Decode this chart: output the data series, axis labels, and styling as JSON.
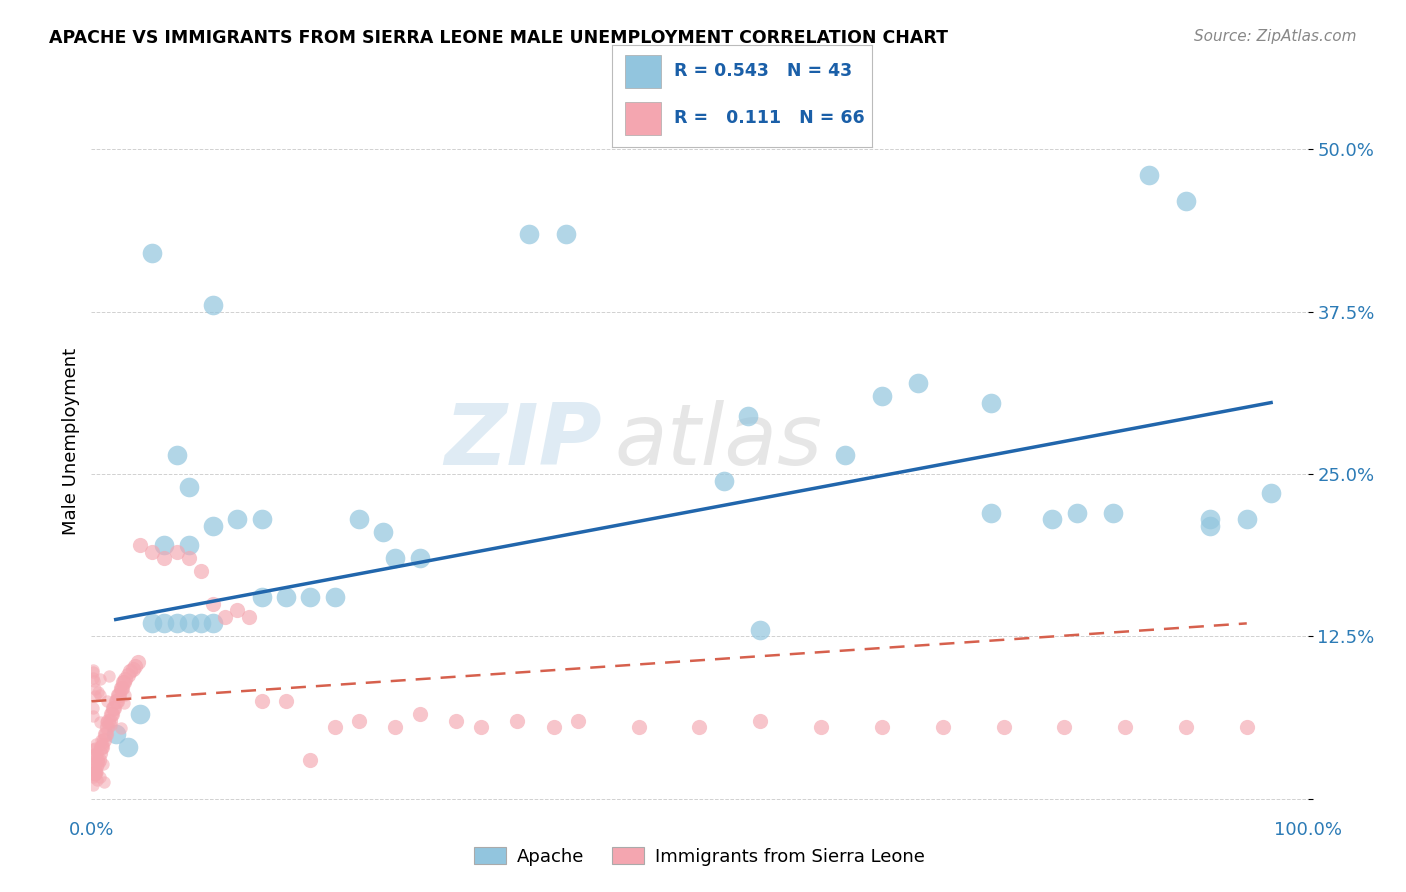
{
  "title": "APACHE VS IMMIGRANTS FROM SIERRA LEONE MALE UNEMPLOYMENT CORRELATION CHART",
  "source": "Source: ZipAtlas.com",
  "ylabel": "Male Unemployment",
  "xlim": [
    0.0,
    1.0
  ],
  "ylim": [
    -0.01,
    0.56
  ],
  "xtick_vals": [
    0.0,
    0.25,
    0.5,
    0.75,
    1.0
  ],
  "xtick_labels": [
    "0.0%",
    "",
    "",
    "",
    "100.0%"
  ],
  "ytick_vals": [
    0.0,
    0.125,
    0.25,
    0.375,
    0.5
  ],
  "ytick_labels": [
    "",
    "12.5%",
    "25.0%",
    "37.5%",
    "50.0%"
  ],
  "legend_r_blue": "0.543",
  "legend_n_blue": "43",
  "legend_r_pink": "0.111",
  "legend_n_pink": "66",
  "blue_color": "#92c5de",
  "pink_color": "#f4a6b0",
  "blue_line_color": "#2166ac",
  "pink_line_color": "#d6604d",
  "watermark_zip": "ZIP",
  "watermark_atlas": "atlas",
  "apache_x": [
    0.05,
    0.36,
    0.39,
    0.1,
    0.07,
    0.08,
    0.12,
    0.14,
    0.06,
    0.08,
    0.1,
    0.22,
    0.24,
    0.52,
    0.54,
    0.65,
    0.68,
    0.74,
    0.74,
    0.79,
    0.81,
    0.84,
    0.87,
    0.9,
    0.92,
    0.92,
    0.95,
    0.97,
    0.62,
    0.1,
    0.25,
    0.27,
    0.14,
    0.16,
    0.18,
    0.2
  ],
  "apache_y": [
    0.42,
    0.435,
    0.435,
    0.38,
    0.265,
    0.24,
    0.215,
    0.215,
    0.195,
    0.195,
    0.21,
    0.215,
    0.205,
    0.245,
    0.295,
    0.31,
    0.32,
    0.305,
    0.22,
    0.215,
    0.22,
    0.22,
    0.48,
    0.46,
    0.21,
    0.215,
    0.215,
    0.235,
    0.265,
    0.135,
    0.185,
    0.185,
    0.155,
    0.155,
    0.155,
    0.155
  ],
  "apache_x2": [
    0.04,
    0.03,
    0.02,
    0.05,
    0.06,
    0.07,
    0.08,
    0.09,
    0.55
  ],
  "apache_y2": [
    0.065,
    0.04,
    0.05,
    0.135,
    0.135,
    0.135,
    0.135,
    0.135,
    0.13
  ],
  "sierra_x": [
    0.002,
    0.003,
    0.004,
    0.005,
    0.006,
    0.007,
    0.008,
    0.009,
    0.01,
    0.011,
    0.012,
    0.013,
    0.014,
    0.015,
    0.016,
    0.017,
    0.018,
    0.019,
    0.02,
    0.021,
    0.022,
    0.023,
    0.024,
    0.025,
    0.026,
    0.027,
    0.028,
    0.029,
    0.03,
    0.031,
    0.032,
    0.033,
    0.034,
    0.035,
    0.036,
    0.037,
    0.038,
    0.039,
    0.04,
    0.041,
    0.042,
    0.043,
    0.044,
    0.045,
    0.05,
    0.055,
    0.06,
    0.065,
    0.07,
    0.075,
    0.08,
    0.085,
    0.09,
    0.095,
    0.1,
    0.11,
    0.12,
    0.13,
    0.14,
    0.15,
    0.16,
    0.17,
    0.18,
    0.2,
    0.22,
    0.25
  ],
  "sierra_y": [
    0.055,
    0.055,
    0.055,
    0.055,
    0.055,
    0.055,
    0.055,
    0.055,
    0.055,
    0.055,
    0.055,
    0.055,
    0.055,
    0.055,
    0.055,
    0.055,
    0.055,
    0.055,
    0.055,
    0.055,
    0.055,
    0.055,
    0.055,
    0.055,
    0.055,
    0.055,
    0.055,
    0.055,
    0.055,
    0.055,
    0.055,
    0.055,
    0.055,
    0.055,
    0.055,
    0.055,
    0.055,
    0.055,
    0.055,
    0.055,
    0.055,
    0.055,
    0.055,
    0.055,
    0.055,
    0.055,
    0.055,
    0.055,
    0.055,
    0.055,
    0.055,
    0.055,
    0.055,
    0.055,
    0.055,
    0.055,
    0.055,
    0.055,
    0.055,
    0.055,
    0.055,
    0.055,
    0.055,
    0.055,
    0.055,
    0.055
  ],
  "sierra_x_scattered": [
    0.002,
    0.003,
    0.004,
    0.005,
    0.006,
    0.007,
    0.008,
    0.009,
    0.01,
    0.011,
    0.012,
    0.013,
    0.014,
    0.015,
    0.016,
    0.017,
    0.018,
    0.019,
    0.02,
    0.021,
    0.022,
    0.023,
    0.024,
    0.025,
    0.026,
    0.027,
    0.028,
    0.03,
    0.032,
    0.034,
    0.036,
    0.038,
    0.04,
    0.05,
    0.06,
    0.07,
    0.08,
    0.09,
    0.1,
    0.11,
    0.12,
    0.13,
    0.14,
    0.16,
    0.18,
    0.2,
    0.22,
    0.25,
    0.27,
    0.3,
    0.32,
    0.35,
    0.38,
    0.4,
    0.45,
    0.5,
    0.55,
    0.6,
    0.65,
    0.7,
    0.75,
    0.8,
    0.85,
    0.9,
    0.95
  ],
  "sierra_y_scattered": [
    0.02,
    0.02,
    0.025,
    0.03,
    0.03,
    0.035,
    0.04,
    0.04,
    0.045,
    0.05,
    0.05,
    0.055,
    0.06,
    0.06,
    0.065,
    0.065,
    0.07,
    0.07,
    0.075,
    0.075,
    0.08,
    0.08,
    0.085,
    0.085,
    0.09,
    0.09,
    0.092,
    0.095,
    0.098,
    0.1,
    0.102,
    0.105,
    0.195,
    0.19,
    0.185,
    0.19,
    0.185,
    0.175,
    0.15,
    0.14,
    0.145,
    0.14,
    0.075,
    0.075,
    0.03,
    0.055,
    0.06,
    0.055,
    0.065,
    0.06,
    0.055,
    0.06,
    0.055,
    0.06,
    0.055,
    0.055,
    0.06,
    0.055,
    0.055,
    0.055,
    0.055,
    0.055,
    0.055,
    0.055,
    0.055
  ]
}
